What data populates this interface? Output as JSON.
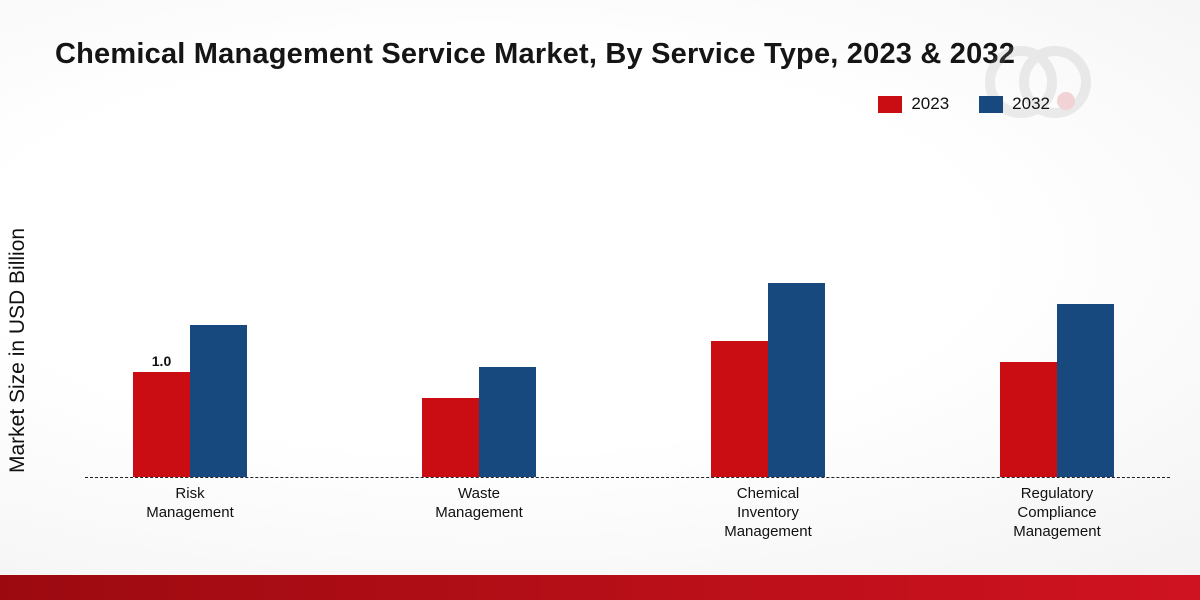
{
  "page": {
    "title": "Chemical Management Service Market, By Service Type, 2023 & 2032",
    "ylabel": "Market Size in USD Billion",
    "footer_colors": [
      "#9c0a10",
      "#d01320"
    ]
  },
  "chart_data": {
    "type": "bar",
    "title": "Chemical Management Service Market, By Service Type, 2023 & 2032",
    "ylabel": "Market Size in USD Billion",
    "xlabel": "",
    "legend_position": "top-right",
    "axis_style": "dashed-baseline-only",
    "grid": false,
    "ylim": [
      0,
      2.0
    ],
    "categories": [
      [
        "Risk",
        "Management"
      ],
      [
        "Waste",
        "Management"
      ],
      [
        "Chemical",
        "Inventory",
        "Management"
      ],
      [
        "Regulatory",
        "Compliance",
        "Management"
      ]
    ],
    "series": [
      {
        "name": "2023",
        "color": "#c90d12",
        "values": [
          1.0,
          0.75,
          1.3,
          1.1
        ],
        "labels": [
          "1.0",
          "",
          "",
          ""
        ]
      },
      {
        "name": "2032",
        "color": "#17497f",
        "values": [
          1.45,
          1.05,
          1.85,
          1.65
        ],
        "labels": [
          "",
          "",
          "",
          ""
        ]
      }
    ]
  }
}
